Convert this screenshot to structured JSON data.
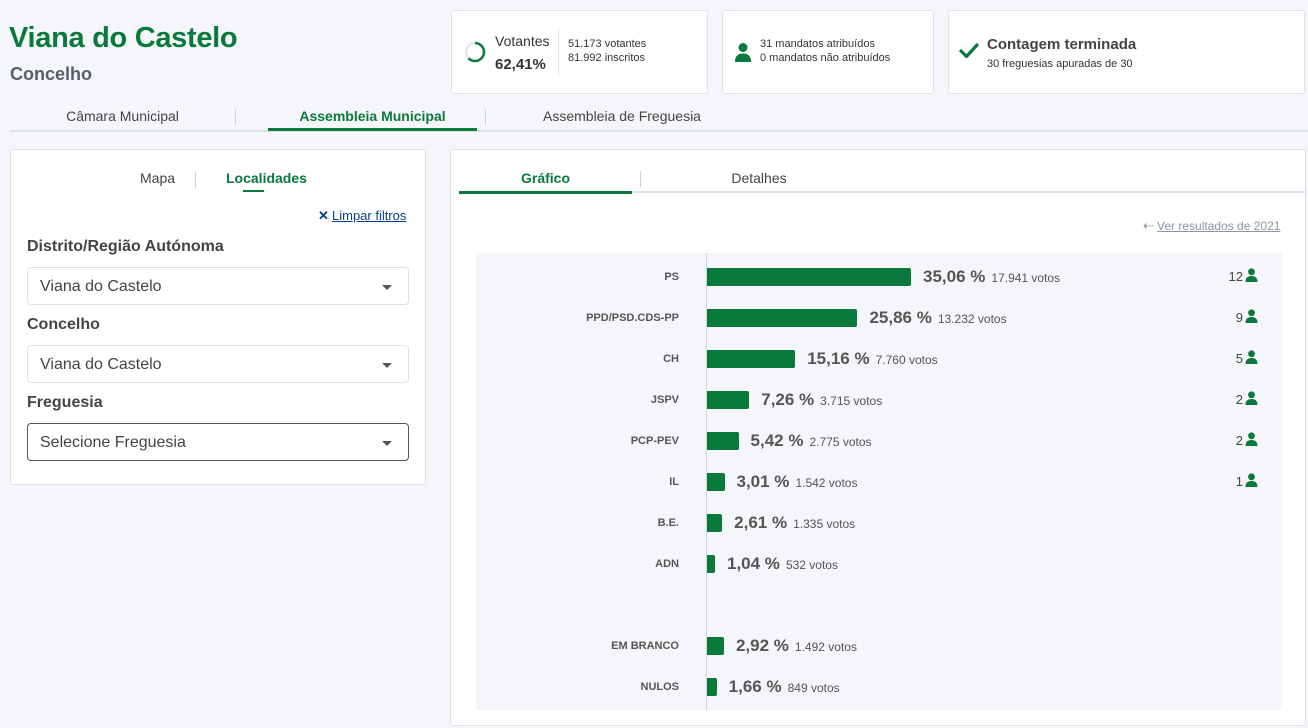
{
  "header": {
    "title": "Viana do Castelo",
    "subtitle": "Concelho"
  },
  "stats": {
    "turnout": {
      "label": "Votantes",
      "percent": "62,41%",
      "percent_value": 62.41,
      "voters": "51.173 votantes",
      "registered": "81.992 inscritos"
    },
    "mandates": {
      "assigned": "31 mandatos atribuídos",
      "unassigned": "0 mandatos não atribuídos"
    },
    "count": {
      "title": "Contagem terminada",
      "detail": "30 freguesias apuradas de 30"
    }
  },
  "main_tabs": [
    {
      "label": "Câmara Municipal",
      "active": false
    },
    {
      "label": "Assembleia Municipal",
      "active": true
    },
    {
      "label": "Assembleia de Freguesia",
      "active": false
    }
  ],
  "filters": {
    "tabs": [
      {
        "label": "Mapa",
        "active": false
      },
      {
        "label": "Localidades",
        "active": true
      }
    ],
    "clear_label": "Limpar filtros",
    "district_label": "Distrito/Região Autónoma",
    "district_value": "Viana do Castelo",
    "municipality_label": "Concelho",
    "municipality_value": "Viana do Castelo",
    "parish_label": "Freguesia",
    "parish_value": "Selecione Freguesia"
  },
  "results": {
    "tabs": [
      {
        "label": "Gráfico",
        "active": true
      },
      {
        "label": "Detalhes",
        "active": false
      }
    ],
    "previous_link": "Ver resultados de 2021"
  },
  "colors": {
    "accent": "#0a7a3c",
    "link": "#0a3f8a"
  },
  "chart_data": {
    "type": "bar",
    "orientation": "horizontal",
    "categories": [
      "PS",
      "PPD/PSD.CDS-PP",
      "CH",
      "JSPV",
      "PCP-PEV",
      "IL",
      "B.E.",
      "ADN",
      "EM BRANCO",
      "NULOS"
    ],
    "values": [
      35.06,
      25.86,
      15.16,
      7.26,
      5.42,
      3.01,
      2.61,
      1.04,
      2.92,
      1.66
    ],
    "percent_labels": [
      "35,06 %",
      "25,86 %",
      "15,16 %",
      "7,26 %",
      "5,42 %",
      "3,01 %",
      "2,61 %",
      "1,04 %",
      "2,92 %",
      "1,66 %"
    ],
    "votes_labels": [
      "17.941 votos",
      "13.232 votos",
      "7.760 votos",
      "3.715 votos",
      "2.775 votos",
      "1.542 votos",
      "1.335 votos",
      "532 votos",
      "1.492 votos",
      "849 votos"
    ],
    "seats": [
      "12",
      "9",
      "5",
      "2",
      "2",
      "1",
      "",
      "",
      "",
      ""
    ],
    "xlim": [
      0,
      100
    ]
  }
}
